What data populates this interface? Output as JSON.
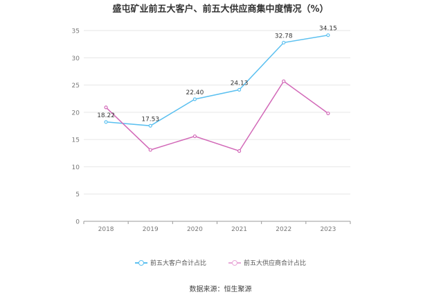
{
  "chart_data": {
    "type": "line",
    "title": "盛屯矿业前五大客户、前五大供应商集中度情况（%）",
    "categories": [
      "2018",
      "2019",
      "2020",
      "2021",
      "2022",
      "2023"
    ],
    "series": [
      {
        "name": "前五大客户合计占比",
        "values": [
          18.22,
          17.53,
          22.4,
          24.13,
          32.78,
          34.15
        ],
        "labels": [
          "18.22",
          "17.53",
          "22.40",
          "24.13",
          "32.78",
          "34.15"
        ],
        "color": "#5bc0f0"
      },
      {
        "name": "前五大供应商合计占比",
        "values": [
          20.9,
          13.1,
          15.6,
          12.9,
          25.7,
          19.8
        ],
        "color": "#d269b8"
      }
    ],
    "ylim": [
      0,
      35
    ],
    "yticks": [
      0,
      5,
      10,
      15,
      20,
      25,
      30,
      35
    ],
    "grid": true,
    "legend": "bottom"
  },
  "source": "数据来源：恒生聚源"
}
